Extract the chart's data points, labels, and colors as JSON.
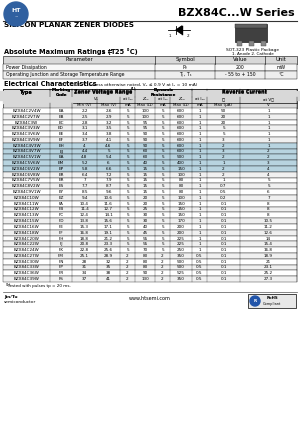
{
  "title": "BZX84C...W Series",
  "subtitle": "SILICON PLANAR ZENER DIODES",
  "package_text": "SOT-323 Plastic Package",
  "package_note": "1. Anode 2. Cathode",
  "abs_max_title": "Absolute Maximum Ratings (T",
  "abs_max_title2": " = 25 °C)",
  "abs_max_headers": [
    "Parameter",
    "Symbol",
    "Value",
    "Unit"
  ],
  "abs_max_rows": [
    [
      "Power Dissipation",
      "P₉",
      "200",
      "mW"
    ],
    [
      "Operating Junction and Storage Temperature Range",
      "Tⱼ , Tₛ",
      "- 55 to + 150",
      "°C"
    ]
  ],
  "elec_title": "Electrical Characteristics",
  "elec_note": " ( Tₐ = 25 °C unless otherwise noted, Vₔ ≤ 0.9 V at Iₔ = 10 mA)",
  "table_rows": [
    [
      "BZX84C2V4W",
      "EA",
      "2.2",
      "2.6",
      "5",
      "100",
      "5",
      "600",
      "1",
      "50",
      "1"
    ],
    [
      "BZX84C2V7W",
      "EB",
      "2.5",
      "2.9",
      "5",
      "100",
      "5",
      "600",
      "1",
      "20",
      "1"
    ],
    [
      "BZX84C3W",
      "EC",
      "2.8",
      "3.2",
      "5",
      "95",
      "5",
      "600",
      "1",
      "20",
      "1"
    ],
    [
      "BZX84C3V3W",
      "ED",
      "3.1",
      "3.5",
      "5",
      "95",
      "5",
      "600",
      "1",
      "5",
      "1"
    ],
    [
      "BZX84C3V6W",
      "EE",
      "3.4",
      "3.8",
      "5",
      "90",
      "5",
      "600",
      "1",
      "5",
      "1"
    ],
    [
      "BZX84C3V9W",
      "EF",
      "3.7",
      "4.1",
      "5",
      "90",
      "5",
      "600",
      "1",
      "3",
      "1"
    ],
    [
      "BZX84C4V3W",
      "EH",
      "4",
      "4.6",
      "5",
      "90",
      "5",
      "600",
      "1",
      "2",
      "1"
    ],
    [
      "BZX84C4V7W",
      "EJ",
      "4.4",
      "5",
      "5",
      "60",
      "5",
      "600",
      "1",
      "3",
      "2"
    ],
    [
      "BZX84C5V1W",
      "EA",
      "4.8",
      "5.4",
      "5",
      "60",
      "5",
      "500",
      "1",
      "2",
      "2"
    ],
    [
      "BZX84C5V6W",
      "EM",
      "5.2",
      "6",
      "5",
      "40",
      "5",
      "400",
      "1",
      "1",
      "3"
    ],
    [
      "BZX84C6V2W",
      "EP",
      "5.8",
      "6.6",
      "5",
      "15",
      "5",
      "150",
      "1",
      "2",
      "4"
    ],
    [
      "BZX84C6V8W",
      "ER",
      "6.4",
      "7.2",
      "5",
      "15",
      "5",
      "100",
      "1",
      "2",
      "4"
    ],
    [
      "BZX84C7V5W",
      "ER",
      "7",
      "7.9",
      "5",
      "15",
      "5",
      "80",
      "1",
      "1",
      "5"
    ],
    [
      "BZX84C8V2W",
      "ES",
      "7.7",
      "8.7",
      "5",
      "15",
      "5",
      "80",
      "1",
      "0.7",
      "5"
    ],
    [
      "BZX84C9V1W",
      "EY",
      "8.5",
      "9.6",
      "5",
      "15",
      "5",
      "80",
      "1",
      "0.5",
      "6"
    ],
    [
      "BZX84C10W",
      "EZ",
      "9.4",
      "10.6",
      "5",
      "20",
      "5",
      "100",
      "1",
      "0.2",
      "7"
    ],
    [
      "BZX84C11W",
      "FA",
      "10.4",
      "11.6",
      "5",
      "20",
      "5",
      "150",
      "1",
      "0.1",
      "8"
    ],
    [
      "BZX84C12W",
      "FB",
      "11.4",
      "12.7",
      "5",
      "25",
      "5",
      "150",
      "1",
      "0.1",
      "8"
    ],
    [
      "BZX84C13W",
      "FC",
      "12.4",
      "14.1",
      "5",
      "30",
      "5",
      "150",
      "1",
      "0.1",
      "8"
    ],
    [
      "BZX84C15W",
      "FD",
      "13.8",
      "15.6",
      "5",
      "30",
      "5",
      "170",
      "1",
      "0.1",
      "10.5"
    ],
    [
      "BZX84C16W",
      "FE",
      "15.3",
      "17.1",
      "5",
      "40",
      "5",
      "200",
      "1",
      "0.1",
      "11.2"
    ],
    [
      "BZX84C18W",
      "FF",
      "16.8",
      "19.1",
      "5",
      "45",
      "5",
      "200",
      "1",
      "0.1",
      "12.6"
    ],
    [
      "BZX84C20W",
      "FH",
      "18.8",
      "21.2",
      "5",
      "55",
      "5",
      "225",
      "1",
      "0.1",
      "14"
    ],
    [
      "BZX84C22W",
      "FJ",
      "20.8",
      "23.3",
      "5",
      "55",
      "5",
      "225",
      "1",
      "0.1",
      "15.4"
    ],
    [
      "BZX84C24W",
      "FK",
      "22.8",
      "25.6",
      "5",
      "70",
      "5",
      "250",
      "1",
      "0.1",
      "16.8"
    ],
    [
      "BZX84C27W",
      "FM",
      "25.1",
      "28.9",
      "2",
      "80",
      "2",
      "350",
      "0.5",
      "0.1",
      "18.9"
    ],
    [
      "BZX84C30W",
      "FN",
      "28",
      "32",
      "2",
      "80",
      "2",
      "500",
      "0.5",
      "0.1",
      "21"
    ],
    [
      "BZX84C33W",
      "FP",
      "31",
      "35",
      "2",
      "80",
      "2",
      "500",
      "0.5",
      "0.1",
      "23.1"
    ],
    [
      "BZX84C36W",
      "FR",
      "34",
      "38",
      "2",
      "90",
      "2",
      "525",
      "0.5",
      "0.1",
      "25.2"
    ],
    [
      "BZX84C39W",
      "FS",
      "37",
      "41",
      "2",
      "130",
      "2",
      "350",
      "0.5",
      "0.1",
      "27.3"
    ]
  ],
  "highlight_rows": [
    6,
    7,
    8,
    9,
    10
  ],
  "highlight_color": "#b8d4e0",
  "orange_row": 9,
  "footnote": "   Tested with pulses tp = 20 ms.",
  "company_line1": "Jin/Tu",
  "company_line2": "semiconductor",
  "website": "www.htsemi.com",
  "bg_color": "#ffffff",
  "border_color": "#000000",
  "hdr_bg": "#d8d8d8",
  "row_bg1": "#ffffff",
  "row_bg2": "#f0f0f0"
}
